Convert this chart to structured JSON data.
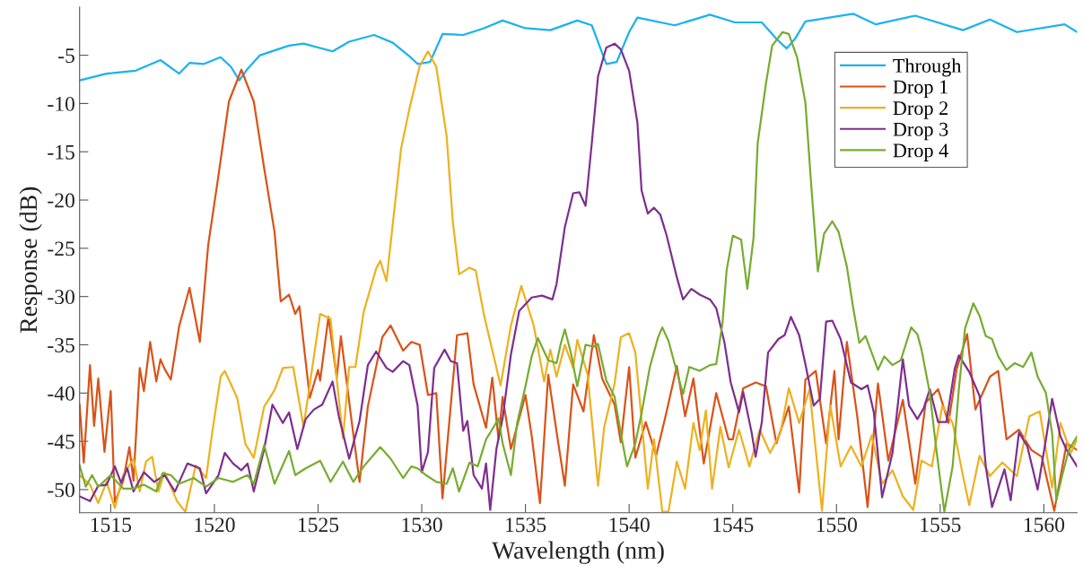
{
  "chart_data": {
    "type": "line",
    "xlabel": "Wavelength (nm)",
    "ylabel": "Response (dB)",
    "xlim": [
      1513.5,
      1561.6
    ],
    "ylim": [
      -52.4,
      0
    ],
    "xticks": [
      1515,
      1520,
      1525,
      1530,
      1535,
      1540,
      1545,
      1550,
      1555,
      1560
    ],
    "yticks": [
      -50,
      -45,
      -40,
      -35,
      -30,
      -25,
      -20,
      -15,
      -10,
      -5
    ],
    "grid": false,
    "legend": "top right",
    "marker": "none",
    "line_style": "solid",
    "series": [
      {
        "name": "Through",
        "color": "#1ab2f0",
        "x": [
          1513.5,
          1514.8,
          1516.2,
          1517.4,
          1518.3,
          1518.8,
          1519.5,
          1520.3,
          1520.8,
          1521.2,
          1521.6,
          1522.2,
          1523.6,
          1524.3,
          1525.7,
          1526.5,
          1527.7,
          1528.6,
          1529.4,
          1529.8,
          1530.4,
          1531.0,
          1532.0,
          1533.0,
          1533.9,
          1535.0,
          1536.2,
          1537.5,
          1538.2,
          1538.9,
          1539.4,
          1540.0,
          1540.4,
          1542.2,
          1543.9,
          1545.1,
          1546.4,
          1547.1,
          1547.6,
          1548.0,
          1548.5,
          1550.8,
          1551.9,
          1553.8,
          1556.1,
          1557.4,
          1558.7,
          1561.0,
          1561.6
        ],
        "values": [
          -7.6,
          -6.9,
          -6.6,
          -5.5,
          -6.9,
          -5.8,
          -5.9,
          -5.2,
          -6.2,
          -7.6,
          -6.4,
          -5.0,
          -4.0,
          -3.8,
          -4.6,
          -3.6,
          -2.9,
          -3.7,
          -5.1,
          -5.9,
          -5.7,
          -2.8,
          -2.9,
          -2.2,
          -1.4,
          -2.2,
          -2.4,
          -1.4,
          -1.9,
          -5.9,
          -5.7,
          -2.6,
          -1.1,
          -1.9,
          -0.8,
          -1.6,
          -1.6,
          -3.3,
          -4.3,
          -3.3,
          -1.5,
          -0.7,
          -1.8,
          -0.9,
          -2.4,
          -1.3,
          -2.6,
          -1.8,
          -2.6
        ]
      },
      {
        "name": "Drop 1",
        "color": "#d95319",
        "x": [
          1513.5,
          1513.7,
          1514.0,
          1514.2,
          1514.4,
          1514.7,
          1515.0,
          1515.2,
          1515.6,
          1515.9,
          1516.1,
          1516.4,
          1516.6,
          1516.9,
          1517.2,
          1517.4,
          1517.6,
          1517.9,
          1518.3,
          1518.8,
          1519.3,
          1519.7,
          1520.2,
          1520.7,
          1521.3,
          1521.9,
          1522.4,
          1522.9,
          1523.2,
          1523.6,
          1523.9,
          1524.1,
          1524.6,
          1525.0,
          1525.1,
          1525.5,
          1525.9,
          1526.1,
          1526.6,
          1527.0,
          1527.4,
          1528.1,
          1528.5,
          1529.1,
          1529.5,
          1529.9,
          1530.3,
          1530.7,
          1531.0,
          1531.7,
          1532.2,
          1532.5,
          1533.1,
          1533.4,
          1533.7,
          1533.9,
          1534.3,
          1535.0,
          1535.3,
          1535.7,
          1536.1,
          1536.5,
          1536.9,
          1537.3,
          1537.8,
          1538.3,
          1538.7,
          1539.3,
          1539.6,
          1540.0,
          1540.3,
          1540.8,
          1541.3,
          1541.8,
          1542.3,
          1542.7,
          1543.1,
          1543.6,
          1544.2,
          1544.8,
          1545.0,
          1545.5,
          1546.1,
          1546.6,
          1547.1,
          1547.7,
          1548.2,
          1548.5,
          1549.0,
          1549.5,
          1549.9,
          1550.1,
          1550.5,
          1551.0,
          1551.5,
          1552.0,
          1552.5,
          1553.2,
          1553.8,
          1554.3,
          1554.9,
          1555.4,
          1555.8,
          1556.3,
          1556.7,
          1557.4,
          1557.8,
          1558.2,
          1558.8,
          1559.4,
          1559.9,
          1560.5,
          1561.1,
          1561.6
        ],
        "values": [
          -41.2,
          -47.2,
          -37.1,
          -43.4,
          -38.5,
          -46.1,
          -39.8,
          -51.3,
          -49.1,
          -45.6,
          -49.1,
          -37.4,
          -39.8,
          -34.7,
          -38.8,
          -36.5,
          -37.5,
          -38.6,
          -33.1,
          -29.1,
          -34.7,
          -24.7,
          -17.4,
          -9.8,
          -6.5,
          -9.8,
          -16.7,
          -23.3,
          -30.5,
          -29.8,
          -31.8,
          -31.0,
          -40.5,
          -37.6,
          -38.7,
          -32.1,
          -38.4,
          -34.1,
          -42.6,
          -49.2,
          -41.4,
          -34.2,
          -33.0,
          -35.6,
          -34.7,
          -35.0,
          -40.2,
          -40.0,
          -50.9,
          -34.0,
          -33.8,
          -39.1,
          -43.6,
          -38.4,
          -44.8,
          -40.4,
          -45.8,
          -40.2,
          -44.4,
          -51.4,
          -38.1,
          -44.0,
          -49.6,
          -39.1,
          -41.9,
          -34.0,
          -38.5,
          -41.2,
          -45.1,
          -37.3,
          -46.7,
          -43.0,
          -46.5,
          -42.0,
          -37.2,
          -42.4,
          -38.5,
          -47.3,
          -40.0,
          -44.8,
          -44.8,
          -39.5,
          -38.9,
          -39.3,
          -45.2,
          -41.4,
          -50.3,
          -38.6,
          -37.7,
          -45.2,
          -37.7,
          -44.8,
          -34.7,
          -42.4,
          -51.8,
          -39.0,
          -47.0,
          -40.7,
          -49.4,
          -41.0,
          -39.6,
          -43.1,
          -37.5,
          -33.9,
          -41.7,
          -38.3,
          -37.7,
          -44.8,
          -43.8,
          -45.9,
          -46.6,
          -52.2,
          -45.2,
          -45.9
        ]
      },
      {
        "name": "Drop 2",
        "color": "#edb120",
        "x": [
          1513.5,
          1514.0,
          1514.4,
          1514.8,
          1515.2,
          1515.6,
          1516.1,
          1516.4,
          1516.7,
          1517.0,
          1517.3,
          1517.6,
          1518.2,
          1518.6,
          1519.1,
          1519.6,
          1519.9,
          1520.3,
          1520.5,
          1521.1,
          1521.5,
          1521.9,
          1522.4,
          1522.9,
          1523.3,
          1523.8,
          1524.3,
          1525.1,
          1525.6,
          1526.2,
          1526.5,
          1526.8,
          1527.2,
          1527.8,
          1528.0,
          1528.3,
          1529.0,
          1529.4,
          1529.9,
          1530.3,
          1530.7,
          1531.2,
          1531.5,
          1531.8,
          1532.3,
          1532.6,
          1533.0,
          1533.8,
          1534.3,
          1534.8,
          1535.4,
          1535.9,
          1536.2,
          1536.5,
          1536.9,
          1537.3,
          1537.5,
          1538.0,
          1538.5,
          1538.8,
          1539.3,
          1539.6,
          1540.0,
          1540.3,
          1540.6,
          1540.9,
          1541.2,
          1541.6,
          1541.9,
          1542.3,
          1542.7,
          1543.1,
          1543.4,
          1543.7,
          1544.0,
          1544.4,
          1544.8,
          1545.3,
          1545.8,
          1546.3,
          1546.8,
          1547.3,
          1547.7,
          1548.2,
          1548.7,
          1549.3,
          1549.7,
          1550.2,
          1550.7,
          1551.2,
          1551.7,
          1552.2,
          1552.7,
          1553.2,
          1553.7,
          1554.1,
          1554.6,
          1555.1,
          1555.6,
          1556.1,
          1556.4,
          1556.9,
          1557.4,
          1558.0,
          1558.7,
          1559.3,
          1559.8,
          1560.4,
          1560.8,
          1561.3,
          1561.6
        ],
        "values": [
          -48.5,
          -49.5,
          -51.4,
          -49.2,
          -51.9,
          -48.5,
          -46.8,
          -50.2,
          -47.1,
          -46.6,
          -50.2,
          -48.2,
          -51.2,
          -52.3,
          -47.5,
          -48.8,
          -44.0,
          -38.3,
          -37.7,
          -40.5,
          -45.3,
          -46.7,
          -41.4,
          -39.7,
          -37.4,
          -37.3,
          -43.5,
          -31.8,
          -32.3,
          -44.7,
          -37.3,
          -37.3,
          -31.6,
          -27.1,
          -26.3,
          -28.4,
          -14.7,
          -10.6,
          -6.1,
          -4.6,
          -6.2,
          -13.4,
          -22.3,
          -27.7,
          -27.0,
          -27.3,
          -31.9,
          -39.2,
          -33.0,
          -28.9,
          -33.0,
          -38.8,
          -35.5,
          -38.3,
          -35.0,
          -37.4,
          -34.5,
          -38.1,
          -49.6,
          -43.5,
          -39.0,
          -34.2,
          -33.8,
          -35.8,
          -42.8,
          -49.9,
          -44.8,
          -52.3,
          -52.3,
          -47.1,
          -49.9,
          -43.1,
          -45.9,
          -41.8,
          -49.9,
          -43.5,
          -47.7,
          -43.8,
          -47.6,
          -43.8,
          -46.2,
          -44.1,
          -39.5,
          -43.1,
          -39.6,
          -52.2,
          -41.3,
          -47.6,
          -45.5,
          -47.6,
          -44.4,
          -49.4,
          -48.0,
          -50.7,
          -52.1,
          -47.0,
          -47.6,
          -41.3,
          -43.1,
          -48.6,
          -51.6,
          -46.5,
          -48.6,
          -47.2,
          -48.6,
          -42.4,
          -41.9,
          -49.8,
          -43.1,
          -46.2,
          -44.8
        ]
      },
      {
        "name": "Drop 3",
        "color": "#7e2f8e",
        "x": [
          1513.5,
          1514.0,
          1514.4,
          1514.8,
          1515.2,
          1515.5,
          1515.8,
          1516.1,
          1516.6,
          1517.1,
          1517.6,
          1518.1,
          1518.7,
          1519.3,
          1519.6,
          1520.2,
          1520.5,
          1520.9,
          1521.3,
          1521.6,
          1521.9,
          1522.4,
          1522.8,
          1523.3,
          1523.6,
          1524.0,
          1524.4,
          1524.8,
          1525.2,
          1525.7,
          1526.0,
          1526.5,
          1527.0,
          1527.4,
          1527.8,
          1528.3,
          1528.6,
          1529.1,
          1529.4,
          1529.8,
          1530.0,
          1530.3,
          1530.6,
          1531.1,
          1531.4,
          1531.7,
          1532.0,
          1532.2,
          1532.5,
          1532.9,
          1533.1,
          1533.3,
          1533.6,
          1533.9,
          1534.3,
          1534.7,
          1535.3,
          1535.8,
          1536.3,
          1536.5,
          1536.9,
          1537.3,
          1537.6,
          1537.9,
          1538.2,
          1538.5,
          1538.9,
          1539.3,
          1539.6,
          1540.0,
          1540.4,
          1540.6,
          1540.9,
          1541.2,
          1541.5,
          1541.8,
          1542.3,
          1542.6,
          1543.0,
          1543.4,
          1543.9,
          1544.2,
          1544.6,
          1544.9,
          1545.3,
          1545.5,
          1545.9,
          1546.1,
          1546.4,
          1546.7,
          1547.2,
          1547.5,
          1547.8,
          1548.2,
          1548.5,
          1548.9,
          1549.2,
          1549.5,
          1549.8,
          1550.2,
          1550.7,
          1551.2,
          1551.5,
          1551.8,
          1552.2,
          1552.7,
          1553.2,
          1553.5,
          1553.9,
          1554.2,
          1554.5,
          1554.9,
          1555.3,
          1555.7,
          1555.9,
          1556.4,
          1556.9,
          1557.2,
          1557.5,
          1558.1,
          1558.4,
          1558.8,
          1559.2,
          1559.7,
          1560.1,
          1560.4,
          1560.8,
          1561.1,
          1561.4,
          1561.6
        ],
        "values": [
          -50.7,
          -51.2,
          -49.6,
          -49.5,
          -47.6,
          -49.3,
          -47.8,
          -50.2,
          -48.2,
          -49.2,
          -48.5,
          -50.2,
          -47.3,
          -47.8,
          -50.4,
          -48.5,
          -46.2,
          -47.3,
          -48.0,
          -47.3,
          -50.2,
          -45.8,
          -41.2,
          -43.1,
          -42.0,
          -45.8,
          -42.7,
          -41.7,
          -41.2,
          -38.8,
          -42.4,
          -46.8,
          -42.9,
          -37.1,
          -35.7,
          -37.4,
          -37.8,
          -36.7,
          -37.1,
          -41.3,
          -48.2,
          -46.1,
          -37.4,
          -35.5,
          -36.7,
          -36.9,
          -43.9,
          -42.9,
          -48.5,
          -49.9,
          -47.3,
          -52.1,
          -45.8,
          -42.6,
          -36.0,
          -31.5,
          -30.1,
          -29.9,
          -30.3,
          -28.7,
          -22.8,
          -19.3,
          -19.2,
          -20.6,
          -14.1,
          -7.2,
          -4.2,
          -3.8,
          -4.4,
          -6.6,
          -12.0,
          -19.0,
          -21.4,
          -20.8,
          -21.5,
          -23.6,
          -28.0,
          -30.3,
          -29.2,
          -29.8,
          -30.3,
          -31.2,
          -34.8,
          -38.9,
          -42.0,
          -39.9,
          -44.0,
          -46.6,
          -43.0,
          -35.8,
          -34.4,
          -34.0,
          -32.1,
          -34.0,
          -37.0,
          -41.3,
          -40.6,
          -32.6,
          -32.5,
          -34.4,
          -38.9,
          -39.6,
          -39.2,
          -42.0,
          -50.8,
          -46.2,
          -36.5,
          -41.3,
          -42.7,
          -41.6,
          -39.6,
          -43.0,
          -43.0,
          -37.5,
          -36.1,
          -37.8,
          -40.3,
          -47.6,
          -51.8,
          -47.9,
          -51.1,
          -44.1,
          -45.5,
          -50.0,
          -44.8,
          -40.6,
          -44.5,
          -45.9,
          -46.9,
          -47.6
        ]
      },
      {
        "name": "Drop 4",
        "color": "#77ac30",
        "x": [
          1513.5,
          1513.8,
          1514.1,
          1514.4,
          1515.0,
          1515.6,
          1516.1,
          1516.6,
          1517.2,
          1517.5,
          1517.9,
          1518.3,
          1519.0,
          1519.6,
          1520.2,
          1520.9,
          1521.6,
          1521.9,
          1522.4,
          1522.9,
          1523.6,
          1523.9,
          1524.4,
          1525.1,
          1525.6,
          1526.2,
          1526.7,
          1527.2,
          1528.0,
          1528.5,
          1529.1,
          1529.5,
          1529.8,
          1530.2,
          1530.7,
          1531.2,
          1531.5,
          1531.8,
          1532.3,
          1532.7,
          1533.1,
          1533.5,
          1533.7,
          1533.9,
          1534.3,
          1534.6,
          1535.0,
          1535.3,
          1535.6,
          1536.1,
          1536.5,
          1536.7,
          1536.9,
          1537.2,
          1537.5,
          1537.9,
          1538.3,
          1538.5,
          1538.9,
          1539.3,
          1539.6,
          1539.9,
          1540.3,
          1540.6,
          1541.0,
          1541.4,
          1541.6,
          1541.9,
          1542.2,
          1542.6,
          1542.9,
          1543.4,
          1543.9,
          1544.2,
          1544.5,
          1544.7,
          1545.0,
          1545.4,
          1545.7,
          1546.0,
          1546.2,
          1546.6,
          1546.9,
          1547.4,
          1547.7,
          1548.1,
          1548.5,
          1548.8,
          1549.1,
          1549.4,
          1549.8,
          1550.1,
          1550.5,
          1550.8,
          1551.1,
          1551.4,
          1551.8,
          1552.0,
          1552.3,
          1552.7,
          1553.1,
          1553.6,
          1553.9,
          1554.1,
          1554.5,
          1554.8,
          1555.2,
          1555.6,
          1555.9,
          1556.2,
          1556.6,
          1556.9,
          1557.2,
          1557.5,
          1557.8,
          1558.2,
          1558.6,
          1559.0,
          1559.4,
          1559.7,
          1560.1,
          1560.4,
          1560.6,
          1560.9,
          1561.2,
          1561.6
        ],
        "values": [
          -47.5,
          -49.7,
          -48.5,
          -49.7,
          -48.5,
          -49.9,
          -49.9,
          -49.5,
          -50.2,
          -48.3,
          -48.5,
          -49.4,
          -48.8,
          -49.7,
          -48.8,
          -49.2,
          -48.5,
          -49.4,
          -45.4,
          -49.4,
          -46.0,
          -48.5,
          -47.8,
          -47.0,
          -49.2,
          -47.1,
          -49.2,
          -47.6,
          -45.6,
          -46.8,
          -48.8,
          -47.6,
          -47.8,
          -48.5,
          -49.2,
          -49.4,
          -47.8,
          -50.2,
          -47.2,
          -47.6,
          -44.8,
          -43.4,
          -42.6,
          -45.2,
          -48.5,
          -43.1,
          -39.3,
          -36.2,
          -34.3,
          -36.6,
          -36.9,
          -34.9,
          -33.4,
          -35.9,
          -39.3,
          -35.0,
          -35.2,
          -34.9,
          -38.7,
          -40.4,
          -44.2,
          -47.6,
          -45.2,
          -42.1,
          -37.3,
          -34.2,
          -33.2,
          -34.6,
          -37.0,
          -40.1,
          -37.3,
          -37.7,
          -37.1,
          -37.0,
          -32.8,
          -27.3,
          -23.7,
          -24.1,
          -29.2,
          -23.9,
          -14.1,
          -7.9,
          -4.0,
          -2.6,
          -2.8,
          -5.2,
          -9.9,
          -19.0,
          -27.4,
          -23.5,
          -22.2,
          -23.3,
          -26.9,
          -31.1,
          -34.8,
          -34.1,
          -36.4,
          -37.6,
          -36.2,
          -37.1,
          -36.6,
          -33.2,
          -33.9,
          -35.5,
          -40.0,
          -45.6,
          -52.3,
          -47.6,
          -39.6,
          -33.3,
          -30.7,
          -32.0,
          -34.1,
          -34.4,
          -36.2,
          -37.6,
          -36.9,
          -37.3,
          -35.8,
          -38.3,
          -40.0,
          -44.2,
          -51.1,
          -48.4,
          -45.9,
          -44.5
        ]
      }
    ]
  }
}
